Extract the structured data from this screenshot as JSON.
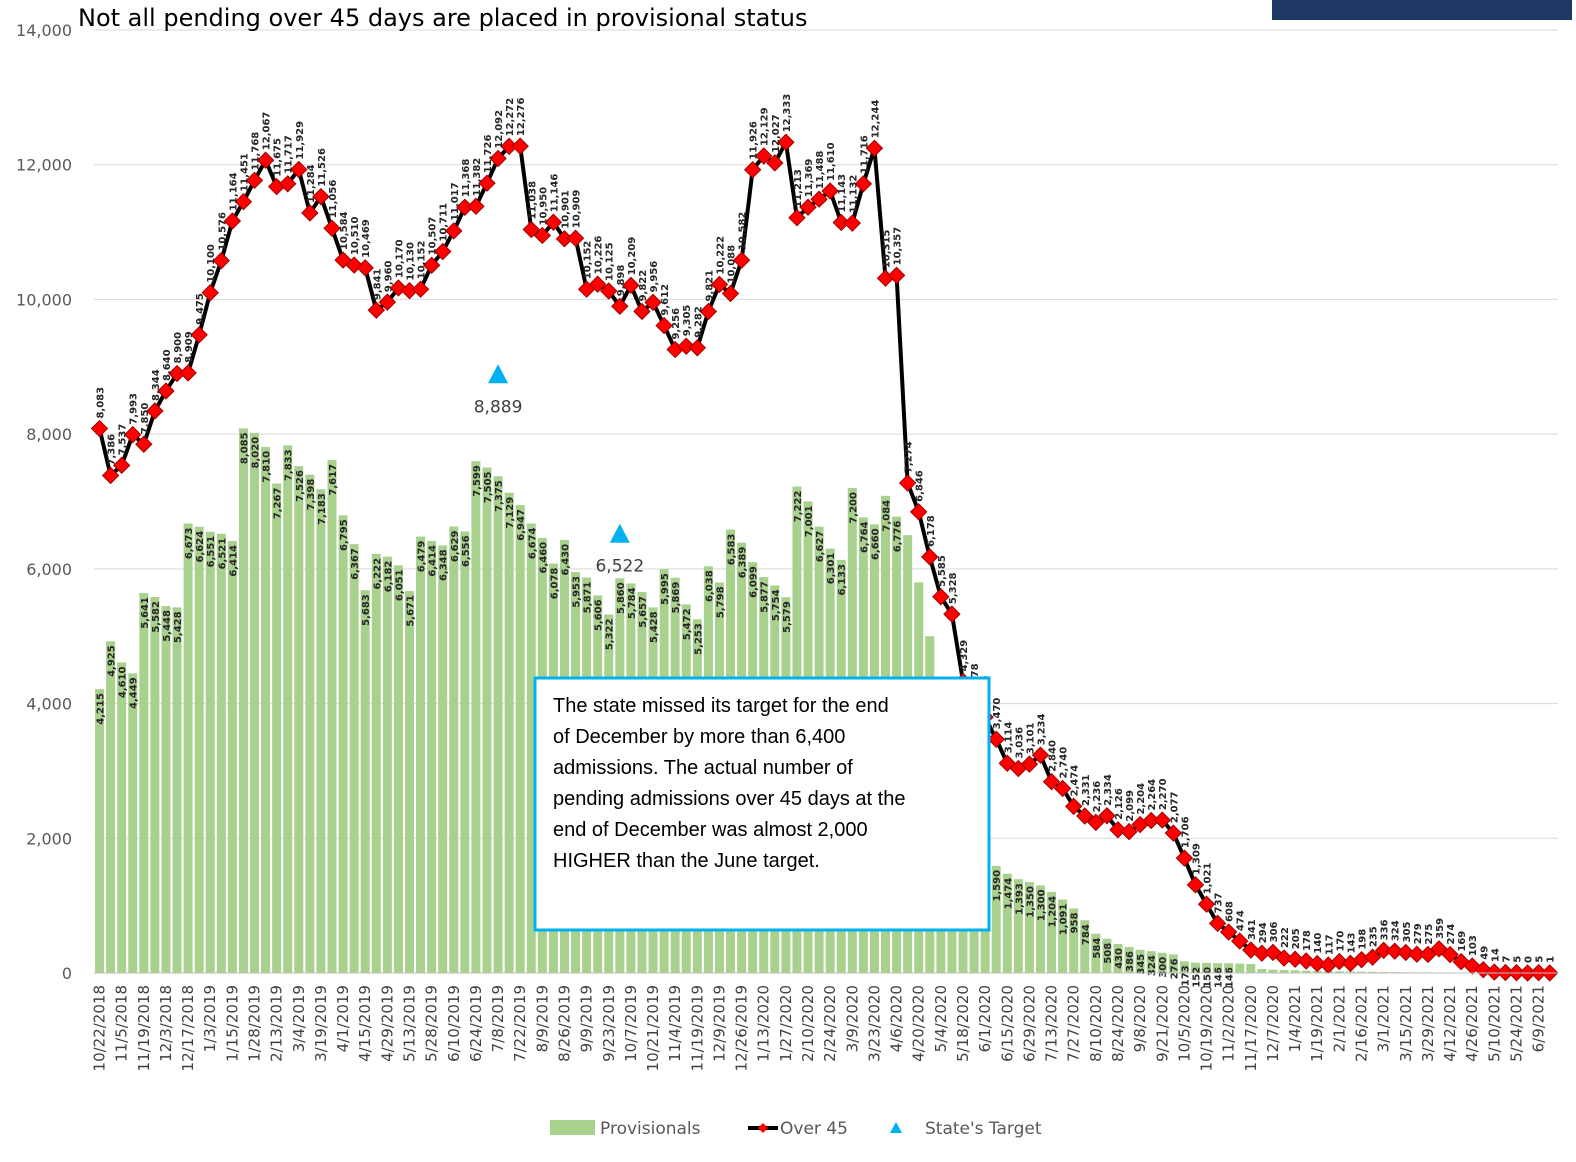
{
  "chart_data": {
    "type": "bar",
    "title": "Not all pending over 45 days are placed in provisional status",
    "categories": [
      "10/22/2018",
      null,
      "11/5/2018",
      null,
      "11/19/2018",
      null,
      "12/3/2018",
      null,
      "12/17/2018",
      null,
      "1/3/2019",
      null,
      "1/15/2019",
      null,
      "1/28/2019",
      null,
      "2/13/2019",
      null,
      "3/4/2019",
      null,
      "3/19/2019",
      null,
      "4/1/2019",
      null,
      "4/15/2019",
      null,
      "4/29/2019",
      null,
      "5/13/2019",
      null,
      "5/28/2019",
      null,
      "6/10/2019",
      null,
      "6/24/2019",
      null,
      "7/8/2019",
      null,
      "7/22/2019",
      null,
      "8/9/2019",
      null,
      "8/26/2019",
      null,
      "9/9/2019",
      null,
      "9/23/2019",
      null,
      "10/7/2019",
      null,
      "10/21/2019",
      null,
      "11/4/2019",
      null,
      "11/19/2019",
      null,
      "12/9/2019",
      null,
      "12/26/2019",
      null,
      "1/13/2020",
      null,
      "1/27/2020",
      null,
      "2/10/2020",
      null,
      "2/24/2020",
      null,
      "3/9/2020",
      null,
      "3/23/2020",
      null,
      "4/6/2020",
      null,
      "4/20/2020",
      null,
      "5/4/2020",
      null,
      "5/18/2020",
      null,
      "6/1/2020",
      null,
      "6/15/2020",
      null,
      "6/29/2020",
      null,
      "7/13/2020",
      null,
      "7/27/2020",
      null,
      "8/10/2020",
      null,
      "8/24/2020",
      null,
      "9/8/2020",
      null,
      "9/21/2020",
      null,
      "10/5/2020",
      null,
      "10/19/2020",
      null,
      "11/2/2020",
      null,
      "11/17/2020",
      null,
      "12/7/2020",
      null,
      "1/4/2021",
      null,
      "1/19/2021",
      null,
      "2/1/2021",
      null,
      "2/16/2021",
      null,
      "3/1/2021",
      null,
      "3/15/2021",
      null,
      "3/29/2021",
      null,
      "4/12/2021",
      null,
      "4/26/2021",
      null,
      "5/10/2021",
      null,
      "5/24/2021",
      null,
      "6/9/2021",
      null
    ],
    "series": [
      {
        "name": "Provisionals",
        "type": "bar",
        "color": "#a9d18e",
        "values": [
          4215,
          4925,
          4610,
          4449,
          5641,
          5582,
          5448,
          5428,
          6673,
          6624,
          6551,
          6521,
          6414,
          8085,
          8020,
          7810,
          7267,
          7833,
          7526,
          7398,
          7183,
          7617,
          6795,
          6367,
          5683,
          6222,
          6182,
          6051,
          5671,
          6479,
          6414,
          6348,
          6629,
          6556,
          7599,
          7505,
          7375,
          7129,
          6947,
          6674,
          6460,
          6078,
          6430,
          5953,
          5871,
          5606,
          5322,
          5860,
          5784,
          5657,
          5428,
          5995,
          5869,
          5472,
          5253,
          6038,
          5798,
          6583,
          6389,
          6099,
          5877,
          5754,
          5579,
          7222,
          7001,
          6627,
          6301,
          6133,
          7200,
          6764,
          6660,
          7084,
          6776,
          6500,
          5800,
          5000,
          4200,
          3500,
          2900,
          2300,
          1858,
          1590,
          1474,
          1393,
          1350,
          1300,
          1204,
          1091,
          958,
          784,
          584,
          508,
          430,
          386,
          345,
          324,
          300,
          276,
          173,
          152,
          150,
          146,
          146,
          140,
          135,
          60,
          50,
          45,
          40,
          35,
          30,
          28,
          25,
          22,
          20,
          18,
          15,
          14,
          12,
          10,
          10,
          8,
          8,
          6,
          5,
          4,
          3,
          2,
          2,
          1,
          1,
          1
        ],
        "value_labels": [
          "4,215",
          "4,925",
          "4,610",
          "4,449",
          "5,641",
          "5,582",
          "5,448",
          "5,428",
          "6,673",
          "6,624",
          "6,551",
          "6,521",
          "6,414",
          "8,085",
          "8,020",
          "7,810",
          "7,267",
          "7,833",
          "7,526",
          "7,398",
          "7,183",
          "7,617",
          "6,795",
          "6,367",
          "5,683",
          "6,222",
          "6,182",
          "6,051",
          "5,671",
          "6,479",
          "6,414",
          "6,348",
          "6,629",
          "6,556",
          "7,599",
          "7,505",
          "7,375",
          "7,129",
          "6,947",
          "6,674",
          "6,460",
          "6,078",
          "6,430",
          "5,953",
          "5,871",
          "5,606",
          "5,322",
          "5,860",
          "5,784",
          "5,657",
          "5,428",
          "5,995",
          "5,869",
          "5,472",
          "5,253",
          "6,038",
          "5,798",
          "6,583",
          "6,389",
          "6,099",
          "5,877",
          "5,754",
          "5,579",
          "7,222",
          "7,001",
          "6,627",
          "6,301",
          "6,133",
          "7,200",
          "6,764",
          "6,660",
          "7,084",
          "6,776",
          null,
          null,
          null,
          null,
          null,
          null,
          null,
          "1,858",
          "1,590",
          "1,474",
          "1,393",
          "1,350",
          "1,300",
          "1,204",
          "1,091",
          "958",
          "784",
          "584",
          "508",
          "430",
          "386",
          "345",
          "324",
          "300",
          "276",
          "173",
          "152",
          "150",
          "146",
          "146",
          null,
          null,
          null,
          null,
          null,
          null,
          null,
          null,
          null,
          null,
          null,
          null,
          null,
          null,
          null,
          null,
          null,
          null,
          null,
          null,
          null,
          null,
          null,
          null,
          null,
          null,
          null,
          null
        ]
      },
      {
        "name": "Over 45",
        "type": "line",
        "color": "#000000",
        "marker_color": "#ff0000",
        "values": [
          8083,
          7386,
          7537,
          7993,
          7850,
          8344,
          8640,
          8900,
          8909,
          9475,
          10100,
          10576,
          11164,
          11451,
          11768,
          12067,
          11675,
          11717,
          11929,
          11284,
          11526,
          11056,
          10584,
          10510,
          10469,
          9841,
          9960,
          10170,
          10130,
          10152,
          10507,
          10711,
          11017,
          11368,
          11382,
          11726,
          12092,
          12272,
          12276,
          11038,
          10950,
          11146,
          10901,
          10909,
          10152,
          10226,
          10125,
          9898,
          10209,
          9822,
          9956,
          9612,
          9256,
          9305,
          9282,
          9821,
          10222,
          10088,
          10582,
          11926,
          12129,
          12027,
          12333,
          11213,
          11369,
          11488,
          11610,
          11143,
          11132,
          11716,
          12244,
          10315,
          10357,
          7274,
          6846,
          6178,
          5585,
          5328,
          4329,
          3978,
          3799,
          3470,
          3114,
          3036,
          3101,
          3234,
          2840,
          2740,
          2474,
          2331,
          2236,
          2334,
          2126,
          2099,
          2204,
          2264,
          2270,
          2077,
          1706,
          1309,
          1021,
          737,
          608,
          474,
          341,
          294,
          306,
          222,
          205,
          178,
          140,
          117,
          170,
          143,
          198,
          235,
          336,
          324,
          305,
          279,
          275,
          359,
          274,
          169,
          103,
          49,
          14,
          7,
          5,
          0,
          5,
          1
        ],
        "value_labels": [
          "8,083",
          "7,386",
          "7,537",
          "7,993",
          "7,850",
          "8,344",
          "8,640",
          "8,900",
          "8,909",
          "9,475",
          "10,100",
          "10,576",
          "11,164",
          "11,451",
          "11,768",
          "12,067",
          "11,675",
          "11,717",
          "11,929",
          "11,284",
          "11,526",
          "11,056",
          "10,584",
          "10,510",
          "10,469",
          "9,841",
          "9,960",
          "10,170",
          "10,130",
          "10,152",
          "10,507",
          "10,711",
          "11,017",
          "11,368",
          "11,382",
          "11,726",
          "12,092",
          "12,272",
          "12,276",
          "11,038",
          "10,950",
          "11,146",
          "10,901",
          "10,909",
          "10,152",
          "10,226",
          "10,125",
          "9,898",
          "10,209",
          "9,822",
          "9,956",
          "9,612",
          "9,256",
          "9,305",
          "9,282",
          "9,821",
          "10,222",
          "10,088",
          "10,582",
          "11,926",
          "12,129",
          "12,027",
          "12,333",
          "11,213",
          "11,369",
          "11,488",
          "11,610",
          "11,143",
          "11,132",
          "11,716",
          "12,244",
          "10,315",
          "10,357",
          "7,274",
          "6,846",
          "6,178",
          "5,585",
          "5,328",
          "4,329",
          "3,978",
          "3,799",
          "3,470",
          "3,114",
          "3,036",
          "3,101",
          "3,234",
          "2,840",
          "2,740",
          "2,474",
          "2,331",
          "2,236",
          "2,334",
          "2,126",
          "2,099",
          "2,204",
          "2,264",
          "2,270",
          "2,077",
          "1,706",
          "1,309",
          "1,021",
          "737",
          "608",
          "474",
          "341",
          "294",
          "306",
          "222",
          "205",
          "178",
          "140",
          "117",
          "170",
          "143",
          "198",
          "235",
          "336",
          "324",
          "305",
          "279",
          "275",
          "359",
          "274",
          "169",
          "103",
          "49",
          "14",
          "7",
          "5",
          "0",
          "5",
          "1"
        ]
      },
      {
        "name": "State's Target",
        "type": "scatter",
        "color": "#00b0f0",
        "values": [
          null,
          null,
          null,
          null,
          null,
          null,
          null,
          null,
          null,
          null,
          null,
          null,
          null,
          null,
          null,
          null,
          null,
          null,
          null,
          null,
          null,
          null,
          null,
          null,
          null,
          null,
          null,
          null,
          null,
          null,
          null,
          null,
          null,
          null,
          null,
          null,
          8889,
          null,
          null,
          null,
          null,
          null,
          null,
          null,
          null,
          null,
          null,
          6522,
          null,
          null,
          null,
          null,
          null,
          null,
          null,
          null,
          null,
          null,
          null,
          null,
          null,
          null,
          null,
          null,
          null,
          null,
          null,
          null,
          null,
          null,
          null,
          null,
          null,
          null,
          null,
          null,
          null,
          null,
          null,
          null,
          null,
          null,
          null,
          null,
          null,
          null,
          null,
          null,
          null,
          null,
          null,
          null,
          null,
          null,
          null,
          null,
          null,
          null,
          null,
          null,
          null,
          null,
          null,
          null,
          null,
          null,
          null,
          null,
          null,
          null,
          null,
          null,
          null,
          null,
          null,
          null,
          null,
          null,
          null,
          null,
          null,
          null,
          null,
          null,
          null,
          null,
          null,
          null,
          null,
          null,
          null,
          null
        ],
        "value_labels": [
          null,
          null,
          null,
          null,
          null,
          null,
          null,
          null,
          null,
          null,
          null,
          null,
          null,
          null,
          null,
          null,
          null,
          null,
          null,
          null,
          null,
          null,
          null,
          null,
          null,
          null,
          null,
          null,
          null,
          null,
          null,
          null,
          null,
          null,
          null,
          null,
          "8,889",
          null,
          null,
          null,
          null,
          null,
          null,
          null,
          null,
          null,
          null,
          "6,522",
          null,
          null,
          null,
          null,
          null,
          null,
          null,
          null,
          null,
          null,
          null,
          null,
          null,
          null,
          null,
          null,
          null,
          null,
          null,
          null,
          null,
          null,
          null,
          null,
          null,
          null,
          null,
          null,
          null,
          null,
          null,
          null,
          null,
          null,
          null,
          null,
          null,
          null,
          null,
          null,
          null,
          null,
          null,
          null,
          null,
          null,
          null,
          null,
          null,
          null,
          null,
          null,
          null,
          null,
          null,
          null,
          null,
          null,
          null,
          null,
          null,
          null,
          null,
          null,
          null,
          null,
          null,
          null,
          null,
          null,
          null,
          null,
          null,
          null,
          null,
          null,
          null,
          null,
          null,
          null,
          null,
          null
        ]
      }
    ],
    "ylim": [
      0,
      14000
    ],
    "yticks": [
      0,
      {
        "value": 2000,
        "label": "2,000"
      },
      {
        "value": 4000,
        "label": "4,000"
      },
      {
        "value": 6000,
        "label": "6,000"
      },
      {
        "value": 8000,
        "label": "8,000"
      },
      {
        "value": 10000,
        "label": "10,000"
      },
      {
        "value": 12000,
        "label": "12,000"
      },
      {
        "value": 14000,
        "label": "14,000"
      }
    ],
    "grid": true,
    "legend": "bottom",
    "annotation": [
      "The state missed its target for the end",
      "of December by more than 6,400",
      "admissions. The actual number of",
      "pending admissions over 45 days at the",
      "end of December was almost 2,000",
      "HIGHER than the June target."
    ]
  }
}
